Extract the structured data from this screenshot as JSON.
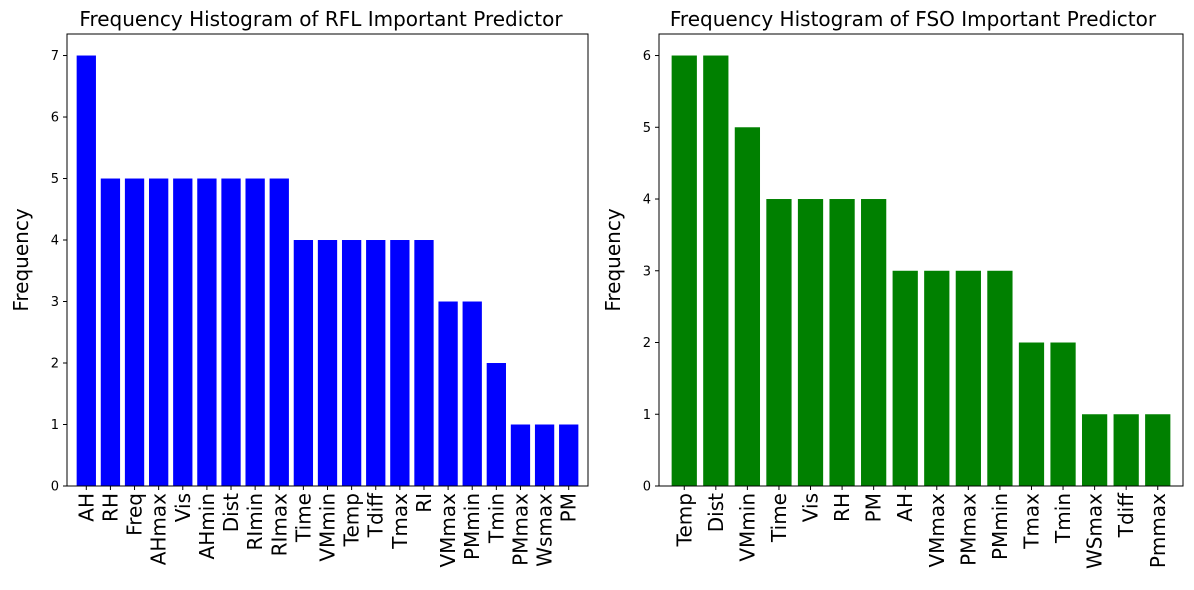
{
  "chart_data": [
    {
      "type": "bar",
      "title": "Frequency Histogram of RFL Important Predictor",
      "xlabel": "",
      "ylabel": "Frequency",
      "categories": [
        "AH",
        "RH",
        "Freq",
        "AHmax",
        "Vis",
        "AHmin",
        "Dist",
        "RImin",
        "RImax",
        "Time",
        "VMmin",
        "Temp",
        "Tdiff",
        "Tmax",
        "RI",
        "VMmax",
        "PMmin",
        "Tmin",
        "PMmax",
        "Wsmax",
        "PM"
      ],
      "values": [
        7,
        5,
        5,
        5,
        5,
        5,
        5,
        5,
        5,
        4,
        4,
        4,
        4,
        4,
        4,
        3,
        3,
        2,
        1,
        1,
        1
      ],
      "yticks": [
        "0",
        "1",
        "2",
        "3",
        "4",
        "5",
        "6",
        "7"
      ],
      "ylim": [
        0,
        7.35
      ],
      "color": "#0000ff",
      "grid": false
    },
    {
      "type": "bar",
      "title": "Frequency Histogram of FSO Important Predictor",
      "xlabel": "",
      "ylabel": "Frequency",
      "categories": [
        "Temp",
        "Dist",
        "VMmin",
        "Time",
        "Vis",
        "RH",
        "PM",
        "AH",
        "VMmax",
        "PMmax",
        "PMmin",
        "Tmax",
        "Tmin",
        "WSmax",
        "Tdiff",
        "Pmmax"
      ],
      "values": [
        6,
        6,
        5,
        4,
        4,
        4,
        4,
        3,
        3,
        3,
        3,
        2,
        2,
        1,
        1,
        1
      ],
      "yticks": [
        "0",
        "1",
        "2",
        "3",
        "4",
        "5",
        "6"
      ],
      "ylim": [
        0,
        6.3
      ],
      "color": "#008000",
      "grid": false
    }
  ]
}
